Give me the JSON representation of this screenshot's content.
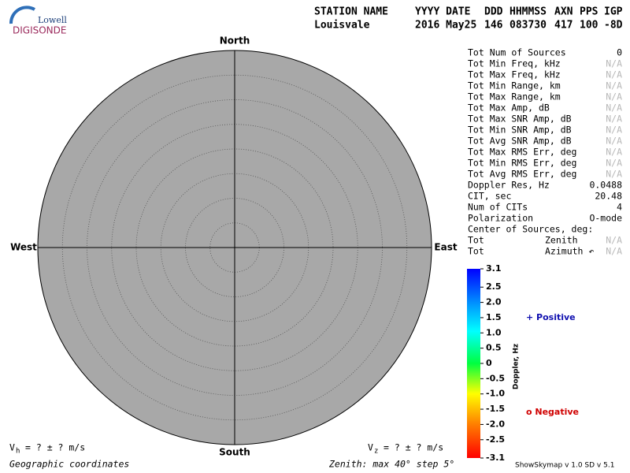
{
  "logo": {
    "top": "Lowell",
    "bottom": "DIGISONDE"
  },
  "header": {
    "labels": [
      "STATION NAME",
      "YYYY DATE",
      "DDD",
      "HHMMSS",
      "AXN",
      "PPS",
      "IGP"
    ],
    "values": [
      "Louisvale",
      "2016 May25",
      "146",
      "083730",
      "417",
      "100",
      "-8D"
    ]
  },
  "plot": {
    "north": "North",
    "south": "South",
    "west": "West",
    "east": "East"
  },
  "stats": {
    "rows": [
      {
        "label": "Tot Num of Sources",
        "value": "0"
      },
      {
        "label": "Tot Min Freq, kHz",
        "value": "N/A"
      },
      {
        "label": "Tot Max Freq, kHz",
        "value": "N/A"
      },
      {
        "label": "Tot Min Range, km",
        "value": "N/A"
      },
      {
        "label": "Tot Max Range, km",
        "value": "N/A"
      },
      {
        "label": "Tot Max Amp, dB",
        "value": "N/A"
      },
      {
        "label": "Tot Max SNR Amp, dB",
        "value": "N/A"
      },
      {
        "label": "Tot Min SNR Amp, dB",
        "value": "N/A"
      },
      {
        "label": "Tot Avg SNR Amp, dB",
        "value": "N/A"
      },
      {
        "label": "Tot Max RMS Err, deg",
        "value": "N/A"
      },
      {
        "label": "Tot Min RMS Err, deg",
        "value": "N/A"
      },
      {
        "label": "Tot Avg RMS Err, deg",
        "value": "N/A"
      },
      {
        "label": "Doppler Res, Hz",
        "value": "0.0488"
      },
      {
        "label": "CIT, sec",
        "value": "20.48"
      },
      {
        "label": "Num of CITs",
        "value": "4"
      },
      {
        "label": "Polarization",
        "value": "O-mode"
      },
      {
        "label": "Center of Sources, deg:"
      },
      {
        "label": "Tot",
        "sublabel": "Zenith",
        "value": "N/A"
      },
      {
        "label": "Tot",
        "sublabel": "Azimuth ↶",
        "value": "N/A"
      }
    ]
  },
  "colorbar": {
    "title": "Doppler, Hz",
    "lim": [
      -3.1,
      3.1
    ],
    "ticks": [
      3.1,
      2.5,
      {
        "value": 2,
        "label": "2.0"
      },
      1.5,
      {
        "value": 1,
        "label": "1.0"
      },
      0.5,
      0,
      -0.5,
      {
        "value": -1,
        "label": "-1.0"
      },
      -1.5,
      {
        "value": -2,
        "label": "-2.0"
      },
      -2.5,
      -3.1
    ]
  },
  "legend": {
    "positive": "+ Positive",
    "negative": "o Negative"
  },
  "footer": {
    "vh": {
      "symbol": "V",
      "sub": "h",
      "text": "=  ? ±  ? m/s"
    },
    "vz": {
      "symbol": "V",
      "sub": "z",
      "text": "=  ? ±  ? m/s"
    },
    "coords": "Geographic coordinates",
    "zenith": "Zenith: max 40°  step 5°",
    "version": "ShowSkymap v 1.0   SD v 5.1"
  }
}
